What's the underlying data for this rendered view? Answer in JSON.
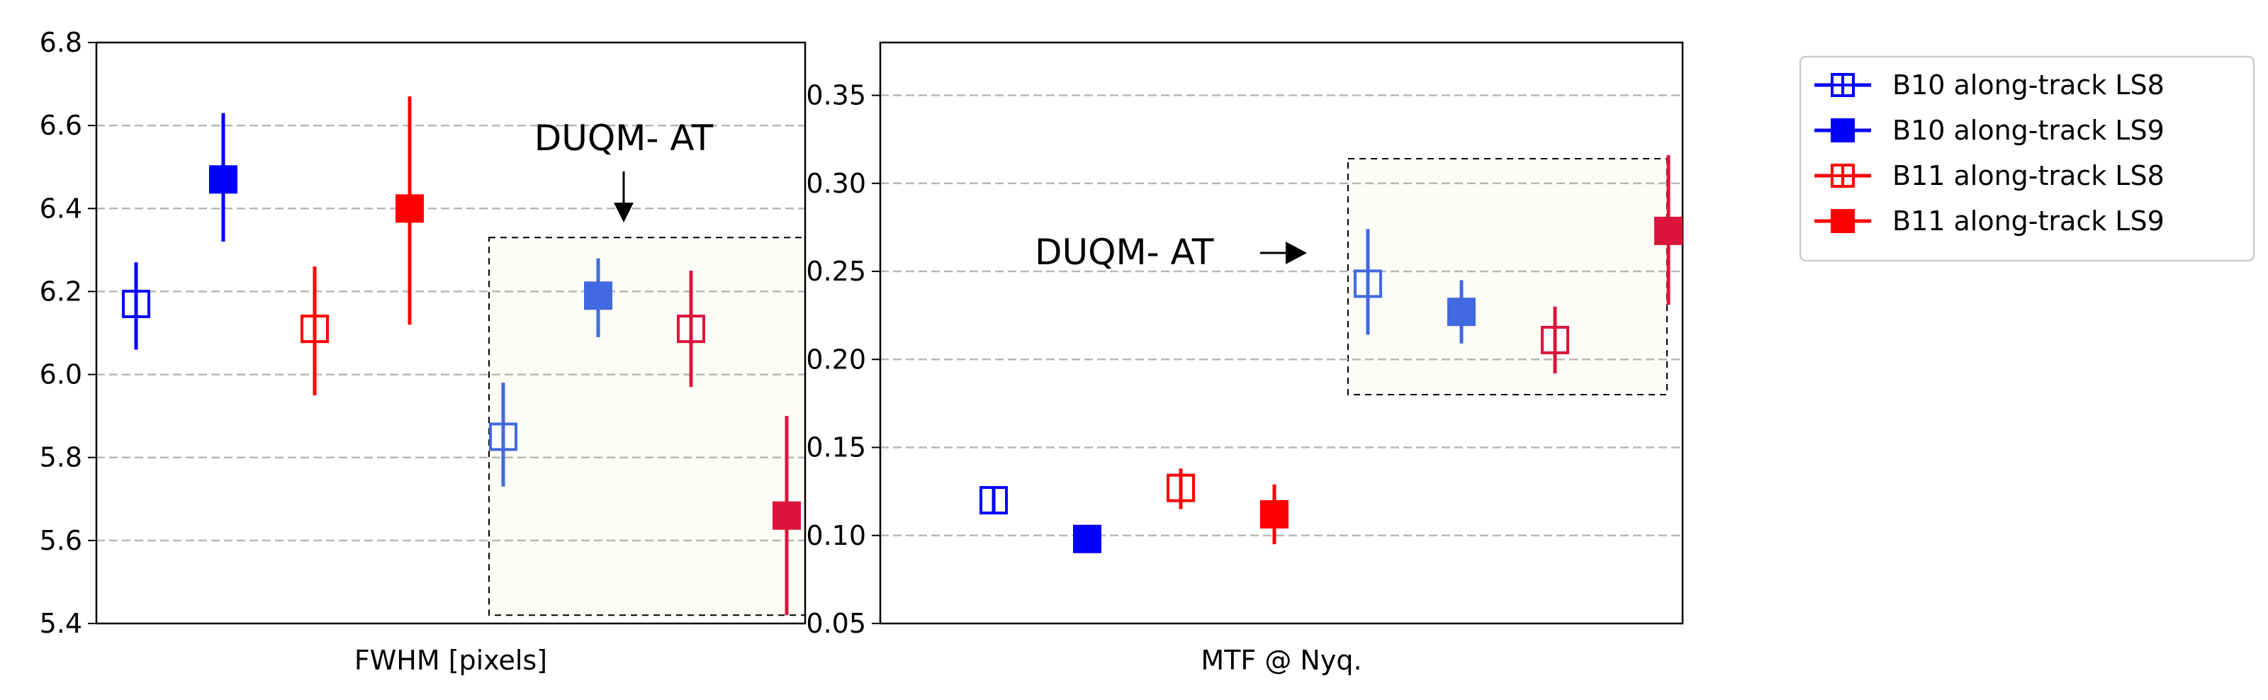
{
  "chart_data": [
    {
      "type": "scatter",
      "xlabel": "FWHM [pixels]",
      "ylabel": "",
      "ylim": [
        5.4,
        6.8
      ],
      "yticks": [
        "5.4",
        "5.6",
        "5.8",
        "6.0",
        "6.2",
        "6.4",
        "6.6",
        "6.8"
      ],
      "grid": "horizontal dashed",
      "series": [
        {
          "name": "B10 along-track LS8",
          "marker": "open-square",
          "color": "#0000ff",
          "y": 6.17,
          "err": [
            6.06,
            6.27
          ]
        },
        {
          "name": "B10 along-track LS9",
          "marker": "filled-square",
          "color": "#0000ff",
          "y": 6.47,
          "err": [
            6.32,
            6.63
          ]
        },
        {
          "name": "B11 along-track LS8",
          "marker": "open-square",
          "color": "#ff0000",
          "y": 6.11,
          "err": [
            5.95,
            6.26
          ]
        },
        {
          "name": "B11 along-track LS9",
          "marker": "filled-square",
          "color": "#ff0000",
          "y": 6.4,
          "err": [
            6.12,
            6.67
          ]
        },
        {
          "name": "B10 along-track LS8",
          "group": "DUQM- AT",
          "marker": "open-square",
          "color": "#4169e1",
          "y": 5.85,
          "err": [
            5.73,
            5.98
          ]
        },
        {
          "name": "B10 along-track LS9",
          "group": "DUQM- AT",
          "marker": "filled-square",
          "color": "#4169e1",
          "y": 6.19,
          "err": [
            6.09,
            6.28
          ]
        },
        {
          "name": "B11 along-track LS8",
          "group": "DUQM- AT",
          "marker": "open-square",
          "color": "#dc143c",
          "y": 6.11,
          "err": [
            5.97,
            6.25
          ]
        },
        {
          "name": "B11 along-track LS9",
          "group": "DUQM- AT",
          "marker": "filled-square",
          "color": "#dc143c",
          "y": 5.66,
          "err": [
            5.42,
            5.9
          ]
        }
      ],
      "annotation": {
        "text": "DUQM- AT",
        "arrow": "down"
      }
    },
    {
      "type": "scatter",
      "xlabel": "MTF @ Nyq.",
      "ylabel": "",
      "ylim": [
        0.05,
        0.38
      ],
      "yticks": [
        "0.05",
        "0.10",
        "0.15",
        "0.20",
        "0.25",
        "0.30",
        "0.35"
      ],
      "grid": "horizontal dashed",
      "series": [
        {
          "name": "B10 along-track LS8",
          "marker": "open-square",
          "color": "#0000ff",
          "y": 0.12,
          "err": [
            0.112,
            0.128
          ]
        },
        {
          "name": "B10 along-track LS9",
          "marker": "filled-square",
          "color": "#0000ff",
          "y": 0.098,
          "err": [
            0.092,
            0.106
          ]
        },
        {
          "name": "B11 along-track LS8",
          "marker": "open-square",
          "color": "#ff0000",
          "y": 0.127,
          "err": [
            0.115,
            0.138
          ]
        },
        {
          "name": "B11 along-track LS9",
          "marker": "filled-square",
          "color": "#ff0000",
          "y": 0.112,
          "err": [
            0.095,
            0.129
          ]
        },
        {
          "name": "B10 along-track LS8",
          "group": "DUQM- AT",
          "marker": "open-square",
          "color": "#4169e1",
          "y": 0.243,
          "err": [
            0.214,
            0.274
          ]
        },
        {
          "name": "B10 along-track LS9",
          "group": "DUQM- AT",
          "marker": "filled-square",
          "color": "#4169e1",
          "y": 0.227,
          "err": [
            0.209,
            0.245
          ]
        },
        {
          "name": "B11 along-track LS8",
          "group": "DUQM- AT",
          "marker": "open-square",
          "color": "#dc143c",
          "y": 0.211,
          "err": [
            0.192,
            0.23
          ]
        },
        {
          "name": "B11 along-track LS9",
          "group": "DUQM- AT",
          "marker": "filled-square",
          "color": "#dc143c",
          "y": 0.273,
          "err": [
            0.231,
            0.316
          ]
        }
      ],
      "annotation": {
        "text": "DUQM- AT",
        "arrow": "right"
      }
    }
  ],
  "legend": {
    "placement": "right",
    "items": [
      {
        "label": "B10 along-track LS8",
        "marker": "open-square",
        "color": "#0000ff"
      },
      {
        "label": "B10 along-track LS9",
        "marker": "filled-square",
        "color": "#0000ff"
      },
      {
        "label": "B11 along-track LS8",
        "marker": "open-square",
        "color": "#ff0000"
      },
      {
        "label": "B11 along-track LS9",
        "marker": "filled-square",
        "color": "#ff0000"
      }
    ]
  },
  "colors": {
    "highlight_box_fill": "#fdfcf6",
    "grid": "#b8b8b8"
  }
}
